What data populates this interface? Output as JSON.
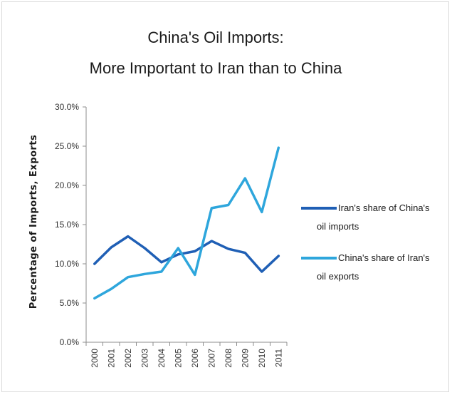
{
  "chart_data": {
    "type": "line",
    "title": [
      "China's Oil Imports:",
      "More Important to Iran than to China"
    ],
    "ylabel": "Percentage of Imports, Exports",
    "xlabel": "",
    "x": [
      "2000",
      "2001",
      "2002",
      "2003",
      "2004",
      "2005",
      "2006",
      "2007",
      "2008",
      "2009",
      "2010",
      "2011"
    ],
    "ylim": [
      0,
      30
    ],
    "yticks": [
      "0.0%",
      "5.0%",
      "10.0%",
      "15.0%",
      "20.0%",
      "25.0%",
      "30.0%"
    ],
    "ytick_values": [
      0,
      5,
      10,
      15,
      20,
      25,
      30
    ],
    "grid": false,
    "legend_position": "right",
    "series": [
      {
        "name_lines": [
          "Iran's share of China's",
          "oil imports"
        ],
        "color": "#1f5fb5",
        "values": [
          10.0,
          12.1,
          13.5,
          12.0,
          10.2,
          11.2,
          11.6,
          12.9,
          11.9,
          11.4,
          9.0,
          11.0
        ]
      },
      {
        "name_lines": [
          "China's share of Iran's",
          "oil exports"
        ],
        "color": "#2ea6dc",
        "values": [
          5.6,
          6.8,
          8.3,
          8.7,
          9.0,
          12.0,
          8.6,
          17.1,
          17.5,
          20.9,
          16.6,
          24.8
        ]
      }
    ]
  }
}
